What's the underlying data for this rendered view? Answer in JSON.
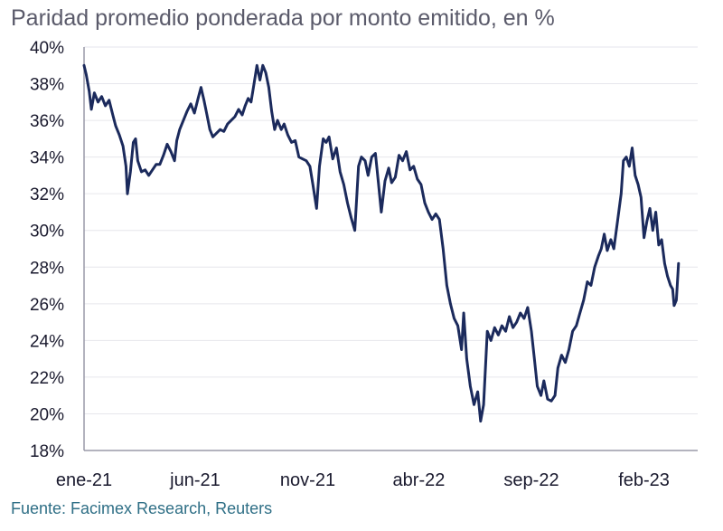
{
  "chart_data": {
    "type": "line",
    "title": "Paridad promedio ponderada por monto emitido, en %",
    "source": "Fuente: Facimex Research, Reuters",
    "xlabel": "",
    "ylabel": "",
    "ylim": [
      18,
      40
    ],
    "y_ticks": [
      "18%",
      "20%",
      "22%",
      "24%",
      "26%",
      "28%",
      "30%",
      "32%",
      "34%",
      "36%",
      "38%",
      "40%"
    ],
    "x_ticks": [
      "ene-21",
      "jun-21",
      "nov-21",
      "abr-22",
      "sep-22",
      "feb-23"
    ],
    "xlim": [
      "2021-01-01",
      "2023-04-15"
    ],
    "grid": true,
    "line_color": "#1b2a5c",
    "series": [
      {
        "points": [
          [
            "2021-01-01",
            39.0
          ],
          [
            "2021-01-04",
            38.5
          ],
          [
            "2021-01-08",
            37.6
          ],
          [
            "2021-01-11",
            36.6
          ],
          [
            "2021-01-15",
            37.5
          ],
          [
            "2021-01-20",
            37.0
          ],
          [
            "2021-01-25",
            37.3
          ],
          [
            "2021-01-30",
            36.8
          ],
          [
            "2021-02-04",
            37.1
          ],
          [
            "2021-02-09",
            36.3
          ],
          [
            "2021-02-13",
            35.7
          ],
          [
            "2021-02-18",
            35.2
          ],
          [
            "2021-02-23",
            34.6
          ],
          [
            "2021-02-27",
            33.5
          ],
          [
            "2021-03-01",
            32.0
          ],
          [
            "2021-03-05",
            33.2
          ],
          [
            "2021-03-09",
            34.8
          ],
          [
            "2021-03-12",
            35.0
          ],
          [
            "2021-03-15",
            33.8
          ],
          [
            "2021-03-20",
            33.2
          ],
          [
            "2021-03-25",
            33.3
          ],
          [
            "2021-03-30",
            33.0
          ],
          [
            "2021-04-04",
            33.3
          ],
          [
            "2021-04-09",
            33.6
          ],
          [
            "2021-04-14",
            33.6
          ],
          [
            "2021-04-19",
            34.1
          ],
          [
            "2021-04-24",
            34.7
          ],
          [
            "2021-04-29",
            34.3
          ],
          [
            "2021-05-04",
            33.8
          ],
          [
            "2021-05-07",
            34.9
          ],
          [
            "2021-05-11",
            35.5
          ],
          [
            "2021-05-16",
            36.0
          ],
          [
            "2021-05-21",
            36.5
          ],
          [
            "2021-05-26",
            36.9
          ],
          [
            "2021-05-31",
            36.4
          ],
          [
            "2021-06-05",
            37.2
          ],
          [
            "2021-06-09",
            37.8
          ],
          [
            "2021-06-13",
            37.1
          ],
          [
            "2021-06-17",
            36.3
          ],
          [
            "2021-06-21",
            35.5
          ],
          [
            "2021-06-25",
            35.1
          ],
          [
            "2021-06-30",
            35.3
          ],
          [
            "2021-07-05",
            35.5
          ],
          [
            "2021-07-10",
            35.4
          ],
          [
            "2021-07-15",
            35.8
          ],
          [
            "2021-07-20",
            36.0
          ],
          [
            "2021-07-25",
            36.2
          ],
          [
            "2021-07-30",
            36.6
          ],
          [
            "2021-08-04",
            36.3
          ],
          [
            "2021-08-08",
            36.8
          ],
          [
            "2021-08-12",
            37.2
          ],
          [
            "2021-08-16",
            37.0
          ],
          [
            "2021-08-20",
            38.0
          ],
          [
            "2021-08-24",
            39.0
          ],
          [
            "2021-08-28",
            38.2
          ],
          [
            "2021-09-01",
            39.0
          ],
          [
            "2021-09-05",
            38.6
          ],
          [
            "2021-09-09",
            37.8
          ],
          [
            "2021-09-13",
            36.5
          ],
          [
            "2021-09-17",
            35.5
          ],
          [
            "2021-09-21",
            36.0
          ],
          [
            "2021-09-26",
            35.5
          ],
          [
            "2021-09-30",
            35.8
          ],
          [
            "2021-10-05",
            35.2
          ],
          [
            "2021-10-10",
            34.8
          ],
          [
            "2021-10-15",
            34.9
          ],
          [
            "2021-10-20",
            34.0
          ],
          [
            "2021-10-25",
            33.9
          ],
          [
            "2021-10-30",
            33.8
          ],
          [
            "2021-11-04",
            33.5
          ],
          [
            "2021-11-08",
            32.5
          ],
          [
            "2021-11-13",
            31.2
          ],
          [
            "2021-11-17",
            33.5
          ],
          [
            "2021-11-22",
            35.0
          ],
          [
            "2021-11-26",
            34.8
          ],
          [
            "2021-11-30",
            35.1
          ],
          [
            "2021-12-05",
            33.9
          ],
          [
            "2021-12-10",
            34.5
          ],
          [
            "2021-12-15",
            33.2
          ],
          [
            "2021-12-20",
            32.5
          ],
          [
            "2021-12-25",
            31.5
          ],
          [
            "2021-12-30",
            30.7
          ],
          [
            "2022-01-04",
            30.0
          ],
          [
            "2022-01-09",
            33.5
          ],
          [
            "2022-01-13",
            34.0
          ],
          [
            "2022-01-18",
            33.8
          ],
          [
            "2022-01-22",
            33.0
          ],
          [
            "2022-01-27",
            34.0
          ],
          [
            "2022-02-01",
            34.2
          ],
          [
            "2022-02-05",
            32.6
          ],
          [
            "2022-02-09",
            31.0
          ],
          [
            "2022-02-14",
            32.7
          ],
          [
            "2022-02-19",
            33.4
          ],
          [
            "2022-02-23",
            32.6
          ],
          [
            "2022-02-28",
            32.9
          ],
          [
            "2022-03-05",
            34.1
          ],
          [
            "2022-03-10",
            33.8
          ],
          [
            "2022-03-15",
            34.3
          ],
          [
            "2022-03-20",
            33.3
          ],
          [
            "2022-03-25",
            33.5
          ],
          [
            "2022-03-30",
            32.8
          ],
          [
            "2022-04-04",
            32.5
          ],
          [
            "2022-04-09",
            31.5
          ],
          [
            "2022-04-14",
            31.0
          ],
          [
            "2022-04-19",
            30.6
          ],
          [
            "2022-04-24",
            30.9
          ],
          [
            "2022-04-29",
            30.6
          ],
          [
            "2022-05-04",
            29.0
          ],
          [
            "2022-05-09",
            27.0
          ],
          [
            "2022-05-14",
            26.0
          ],
          [
            "2022-05-19",
            25.2
          ],
          [
            "2022-05-24",
            24.8
          ],
          [
            "2022-05-29",
            23.5
          ],
          [
            "2022-06-01",
            25.5
          ],
          [
            "2022-06-05",
            23.0
          ],
          [
            "2022-06-10",
            21.5
          ],
          [
            "2022-06-15",
            20.5
          ],
          [
            "2022-06-20",
            21.2
          ],
          [
            "2022-06-24",
            19.6
          ],
          [
            "2022-06-28",
            20.5
          ],
          [
            "2022-07-03",
            24.5
          ],
          [
            "2022-07-08",
            24.0
          ],
          [
            "2022-07-13",
            24.7
          ],
          [
            "2022-07-18",
            24.3
          ],
          [
            "2022-07-23",
            24.8
          ],
          [
            "2022-07-28",
            24.5
          ],
          [
            "2022-08-02",
            25.3
          ],
          [
            "2022-08-07",
            24.7
          ],
          [
            "2022-08-12",
            25.0
          ],
          [
            "2022-08-17",
            25.5
          ],
          [
            "2022-08-22",
            25.2
          ],
          [
            "2022-08-27",
            25.8
          ],
          [
            "2022-09-01",
            24.5
          ],
          [
            "2022-09-05",
            23.0
          ],
          [
            "2022-09-09",
            21.5
          ],
          [
            "2022-09-14",
            21.0
          ],
          [
            "2022-09-18",
            21.8
          ],
          [
            "2022-09-23",
            20.8
          ],
          [
            "2022-09-28",
            20.7
          ],
          [
            "2022-10-03",
            21.0
          ],
          [
            "2022-10-07",
            22.5
          ],
          [
            "2022-10-12",
            23.2
          ],
          [
            "2022-10-17",
            22.8
          ],
          [
            "2022-10-22",
            23.5
          ],
          [
            "2022-10-27",
            24.5
          ],
          [
            "2022-11-01",
            24.8
          ],
          [
            "2022-11-06",
            25.5
          ],
          [
            "2022-11-11",
            26.2
          ],
          [
            "2022-11-16",
            27.2
          ],
          [
            "2022-11-21",
            27.0
          ],
          [
            "2022-11-26",
            28.0
          ],
          [
            "2022-12-01",
            28.6
          ],
          [
            "2022-12-05",
            29.0
          ],
          [
            "2022-12-09",
            29.8
          ],
          [
            "2022-12-13",
            28.9
          ],
          [
            "2022-12-18",
            29.5
          ],
          [
            "2022-12-22",
            29.0
          ],
          [
            "2022-12-27",
            30.5
          ],
          [
            "2023-01-01",
            32.0
          ],
          [
            "2023-01-04",
            33.8
          ],
          [
            "2023-01-08",
            34.0
          ],
          [
            "2023-01-12",
            33.5
          ],
          [
            "2023-01-16",
            34.5
          ],
          [
            "2023-01-20",
            33.0
          ],
          [
            "2023-01-24",
            32.5
          ],
          [
            "2023-01-28",
            31.8
          ],
          [
            "2023-02-01",
            29.6
          ],
          [
            "2023-02-05",
            30.5
          ],
          [
            "2023-02-09",
            31.2
          ],
          [
            "2023-02-13",
            30.0
          ],
          [
            "2023-02-17",
            31.0
          ],
          [
            "2023-02-21",
            29.2
          ],
          [
            "2023-02-25",
            29.5
          ],
          [
            "2023-03-01",
            28.2
          ],
          [
            "2023-03-05",
            27.5
          ],
          [
            "2023-03-09",
            27.0
          ],
          [
            "2023-03-12",
            26.8
          ],
          [
            "2023-03-14",
            25.9
          ],
          [
            "2023-03-17",
            26.2
          ],
          [
            "2023-03-20",
            28.2
          ]
        ]
      }
    ]
  }
}
